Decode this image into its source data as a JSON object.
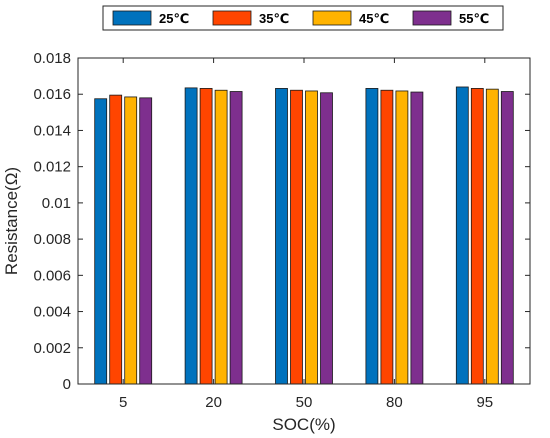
{
  "chart_data": {
    "type": "bar",
    "categories": [
      "5",
      "20",
      "50",
      "80",
      "95"
    ],
    "series": [
      {
        "name": "25℃",
        "color": "#0072BD",
        "values": [
          0.01575,
          0.01635,
          0.01632,
          0.01632,
          0.0164
        ]
      },
      {
        "name": "35℃",
        "color": "#FF4500",
        "values": [
          0.01595,
          0.01632,
          0.01622,
          0.01622,
          0.01632
        ]
      },
      {
        "name": "45℃",
        "color": "#FFB300",
        "values": [
          0.01585,
          0.01622,
          0.01618,
          0.01618,
          0.01628
        ]
      },
      {
        "name": "55℃",
        "color": "#7E2F8E",
        "values": [
          0.0158,
          0.01615,
          0.01608,
          0.01612,
          0.01615
        ]
      }
    ],
    "xlabel": "SOC(%)",
    "ylabel": "Resistance(Ω)",
    "ylim": [
      0,
      0.018
    ],
    "yticks": [
      "0",
      "0.002",
      "0.004",
      "0.006",
      "0.008",
      "0.01",
      "0.012",
      "0.014",
      "0.016",
      "0.018"
    ],
    "grid": false,
    "legend_position": "top"
  }
}
